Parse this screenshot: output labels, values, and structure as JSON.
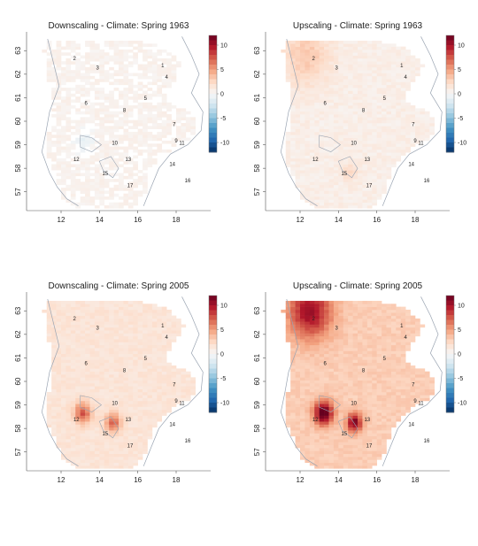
{
  "colors": {
    "scale": [
      "#053061",
      "#2166ac",
      "#4393c3",
      "#92c5de",
      "#d1e5f0",
      "#f7f7f7",
      "#fddbc7",
      "#f4a582",
      "#d6604d",
      "#b2182b",
      "#67001f"
    ],
    "coast": "#9aa4b2",
    "axis": "#555555"
  },
  "chart_data": [
    {
      "type": "heatmap",
      "title": "Downscaling - Climate: Spring 1963",
      "xlabel": "",
      "ylabel": "",
      "xlim": [
        10.2,
        19.8
      ],
      "ylim": [
        56.2,
        63.8
      ],
      "xticks": [
        "12",
        "14",
        "16",
        "18"
      ],
      "yticks": [
        "57",
        "58",
        "59",
        "60",
        "61",
        "62",
        "63"
      ],
      "colorbar": {
        "min": -12,
        "max": 12,
        "ticks": [
          "10",
          "5",
          "0",
          "-5",
          "-10"
        ]
      },
      "field": {
        "base": 0.4,
        "hotspots": [
          {
            "lon": 13.1,
            "lat": 59.1,
            "value": -1.2,
            "radius": 0.5
          }
        ]
      },
      "stations": [
        "1",
        "2",
        "3",
        "4",
        "5",
        "6",
        "7",
        "8",
        "9",
        "10",
        "11",
        "12",
        "13",
        "14",
        "15",
        "16",
        "17"
      ]
    },
    {
      "type": "heatmap",
      "title": "Upscaling - Climate: Spring 1963",
      "xlabel": "",
      "ylabel": "",
      "xlim": [
        10.2,
        19.8
      ],
      "ylim": [
        56.2,
        63.8
      ],
      "xticks": [
        "12",
        "14",
        "16",
        "18"
      ],
      "yticks": [
        "57",
        "58",
        "59",
        "60",
        "61",
        "62",
        "63"
      ],
      "colorbar": {
        "min": -12,
        "max": 12,
        "ticks": [
          "10",
          "5",
          "0",
          "-5",
          "-10"
        ]
      },
      "field": {
        "base": 0.8,
        "hotspots": [
          {
            "lon": 12.2,
            "lat": 62.7,
            "value": 2.5,
            "radius": 1.2
          },
          {
            "lon": 14.5,
            "lat": 57.8,
            "value": 1.5,
            "radius": 0.4
          }
        ]
      },
      "stations": [
        "1",
        "2",
        "3",
        "4",
        "5",
        "6",
        "7",
        "8",
        "9",
        "10",
        "11",
        "12",
        "13",
        "14",
        "15",
        "16",
        "17"
      ]
    },
    {
      "type": "heatmap",
      "title": "Downscaling - Climate: Spring 2005",
      "xlabel": "",
      "ylabel": "",
      "xlim": [
        10.2,
        19.8
      ],
      "ylim": [
        56.2,
        63.8
      ],
      "xticks": [
        "12",
        "14",
        "16",
        "18"
      ],
      "yticks": [
        "57",
        "58",
        "59",
        "60",
        "61",
        "62",
        "63"
      ],
      "colorbar": {
        "min": -12,
        "max": 12,
        "ticks": [
          "10",
          "5",
          "0",
          "-5",
          "-10"
        ]
      },
      "field": {
        "base": 1.6,
        "hotspots": [
          {
            "lon": 13.0,
            "lat": 58.6,
            "value": 6.0,
            "radius": 0.45
          },
          {
            "lon": 14.6,
            "lat": 58.2,
            "value": 5.5,
            "radius": 0.4
          }
        ]
      },
      "stations": [
        "1",
        "2",
        "3",
        "4",
        "5",
        "6",
        "7",
        "8",
        "9",
        "10",
        "11",
        "12",
        "13",
        "14",
        "15",
        "16",
        "17"
      ]
    },
    {
      "type": "heatmap",
      "title": "Upscaling - Climate: Spring 2005",
      "xlabel": "",
      "ylabel": "",
      "xlim": [
        10.2,
        19.8
      ],
      "ylim": [
        56.2,
        63.8
      ],
      "xticks": [
        "12",
        "14",
        "16",
        "18"
      ],
      "yticks": [
        "57",
        "58",
        "59",
        "60",
        "61",
        "62",
        "63"
      ],
      "colorbar": {
        "min": -12,
        "max": 12,
        "ticks": [
          "10",
          "5",
          "0",
          "-5",
          "-10"
        ]
      },
      "field": {
        "base": 3.0,
        "hotspots": [
          {
            "lon": 12.4,
            "lat": 62.9,
            "value": 7.5,
            "radius": 1.1
          },
          {
            "lon": 13.1,
            "lat": 58.6,
            "value": 10.0,
            "radius": 0.5
          },
          {
            "lon": 14.7,
            "lat": 58.2,
            "value": 8.5,
            "radius": 0.4
          }
        ]
      },
      "stations": [
        "1",
        "2",
        "3",
        "4",
        "5",
        "6",
        "7",
        "8",
        "9",
        "10",
        "11",
        "12",
        "13",
        "14",
        "15",
        "16",
        "17"
      ]
    }
  ]
}
